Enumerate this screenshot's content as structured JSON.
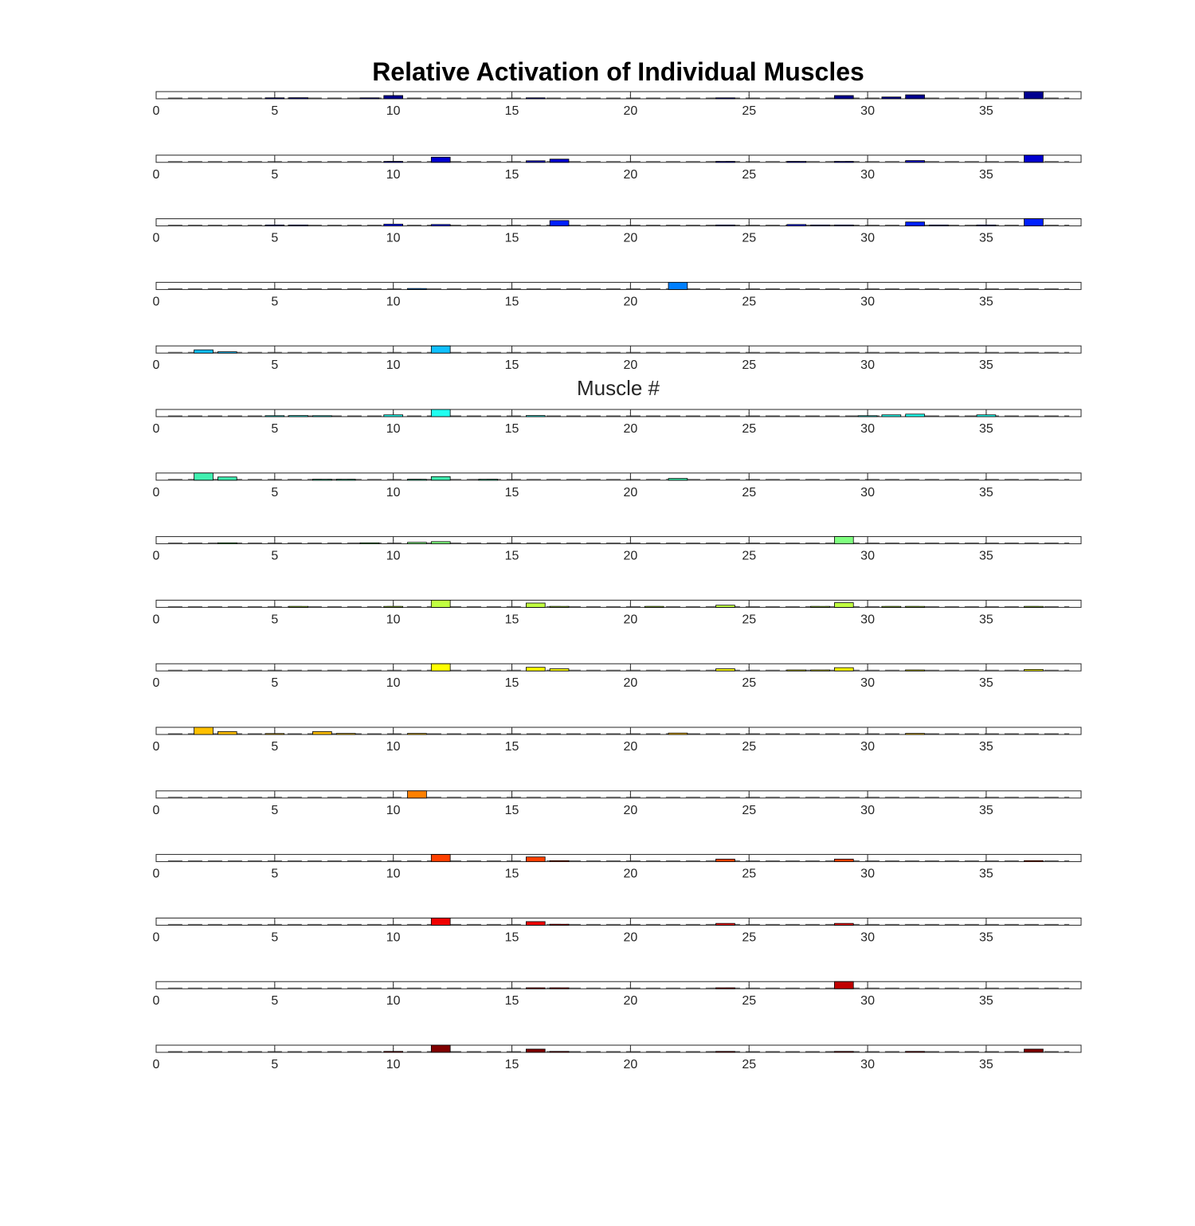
{
  "chart_data": {
    "type": "bar",
    "title": "Relative Activation of Individual Muscles",
    "xlabel": "Muscle #",
    "ylabel": "",
    "xlim": [
      0,
      39
    ],
    "ylim": [
      0,
      1
    ],
    "x_ticks": [
      0,
      5,
      10,
      15,
      20,
      25,
      30,
      35
    ],
    "x": [
      1,
      2,
      3,
      4,
      5,
      6,
      7,
      8,
      9,
      10,
      11,
      12,
      13,
      14,
      15,
      16,
      17,
      18,
      19,
      20,
      21,
      22,
      23,
      24,
      25,
      26,
      27,
      28,
      29,
      30,
      31,
      32,
      33,
      34,
      35,
      36,
      37,
      38
    ],
    "grid": false,
    "legend": "none",
    "panels": [
      {
        "color": "#00008F",
        "values": [
          0,
          0,
          0,
          0,
          0.08,
          0.15,
          0,
          0,
          0.05,
          0.45,
          0,
          0,
          0,
          0,
          0,
          0.1,
          0,
          0,
          0,
          0,
          0,
          0,
          0,
          0.05,
          0,
          0,
          0,
          0,
          0.45,
          0,
          0.25,
          0.55,
          0,
          0,
          0,
          0,
          1.0,
          0
        ]
      },
      {
        "color": "#0000D0",
        "values": [
          0,
          0,
          0,
          0,
          0,
          0,
          0,
          0,
          0,
          0.12,
          0,
          0.72,
          0,
          0,
          0,
          0.22,
          0.45,
          0,
          0,
          0,
          0,
          0,
          0,
          0.1,
          0,
          0,
          0.1,
          0,
          0.1,
          0,
          0,
          0.25,
          0,
          0,
          0,
          0,
          1.0,
          0
        ]
      },
      {
        "color": "#0020FF",
        "values": [
          0,
          0,
          0,
          0,
          0.08,
          0.08,
          0,
          0,
          0,
          0.25,
          0,
          0.2,
          0,
          0,
          0,
          0,
          0.75,
          0,
          0,
          0,
          0,
          0,
          0,
          0.08,
          0,
          0,
          0.2,
          0.08,
          0.08,
          0,
          0,
          0.55,
          0.08,
          0,
          0.08,
          0,
          1.0,
          0
        ]
      },
      {
        "color": "#0080FF",
        "values": [
          0,
          0,
          0,
          0,
          0,
          0,
          0,
          0,
          0,
          0,
          0.04,
          0,
          0,
          0,
          0,
          0,
          0,
          0,
          0,
          0,
          0,
          1.0,
          0,
          0,
          0,
          0,
          0,
          0,
          0,
          0,
          0,
          0,
          0,
          0,
          0,
          0,
          0,
          0
        ]
      },
      {
        "color": "#10C0FF",
        "values": [
          0,
          0.45,
          0.18,
          0,
          0,
          0,
          0,
          0,
          0,
          0,
          0,
          1.0,
          0,
          0,
          0,
          0,
          0,
          0,
          0,
          0,
          0,
          0,
          0,
          0,
          0,
          0,
          0,
          0,
          0,
          0,
          0,
          0,
          0,
          0,
          0,
          0,
          0,
          0
        ]
      },
      {
        "color": "#20FFF0",
        "values": [
          0,
          0,
          0,
          0,
          0.1,
          0.15,
          0.05,
          0,
          0,
          0.25,
          0,
          1.0,
          0,
          0,
          0,
          0.15,
          0,
          0,
          0,
          0,
          0,
          0,
          0,
          0,
          0,
          0,
          0,
          0,
          0,
          0.08,
          0.25,
          0.35,
          0,
          0,
          0.25,
          0,
          0,
          0
        ]
      },
      {
        "color": "#40F0B0",
        "values": [
          0,
          1.0,
          0.45,
          0,
          0,
          0,
          0.1,
          0.1,
          0,
          0,
          0.1,
          0.5,
          0,
          0.08,
          0,
          0,
          0,
          0,
          0,
          0,
          0,
          0.25,
          0,
          0,
          0,
          0,
          0,
          0,
          0,
          0,
          0,
          0,
          0,
          0,
          0,
          0,
          0,
          0
        ]
      },
      {
        "color": "#80FF80",
        "values": [
          0,
          0,
          0.04,
          0,
          0,
          0,
          0,
          0,
          0.08,
          0,
          0.2,
          0.3,
          0,
          0,
          0,
          0,
          0,
          0,
          0,
          0,
          0,
          0,
          0,
          0,
          0,
          0,
          0,
          0,
          1.0,
          0,
          0,
          0,
          0,
          0,
          0,
          0,
          0,
          0
        ]
      },
      {
        "color": "#C0FF40",
        "values": [
          0,
          0,
          0,
          0,
          0,
          0.08,
          0,
          0,
          0,
          0.08,
          0,
          1.0,
          0,
          0,
          0,
          0.6,
          0.1,
          0,
          0,
          0,
          0.05,
          0,
          0,
          0.3,
          0,
          0,
          0,
          0.08,
          0.65,
          0,
          0.05,
          0.05,
          0,
          0,
          0,
          0,
          0.08,
          0
        ]
      },
      {
        "color": "#FFFF00",
        "values": [
          0,
          0,
          0,
          0,
          0,
          0,
          0,
          0,
          0,
          0,
          0,
          1.0,
          0,
          0,
          0,
          0.5,
          0.3,
          0,
          0,
          0,
          0,
          0,
          0,
          0.3,
          0,
          0,
          0.05,
          0.05,
          0.45,
          0,
          0,
          0.1,
          0,
          0,
          0,
          0,
          0.2,
          0
        ]
      },
      {
        "color": "#FFC000",
        "values": [
          0,
          1.0,
          0.4,
          0,
          0.08,
          0,
          0.4,
          0.15,
          0,
          0,
          0.15,
          0,
          0,
          0,
          0,
          0,
          0,
          0,
          0,
          0,
          0,
          0.2,
          0,
          0,
          0,
          0,
          0,
          0,
          0,
          0,
          0,
          0.15,
          0,
          0,
          0,
          0,
          0,
          0
        ]
      },
      {
        "color": "#FF8000",
        "values": [
          0,
          0,
          0,
          0,
          0,
          0,
          0,
          0,
          0,
          0,
          1.0,
          0,
          0,
          0,
          0,
          0,
          0,
          0,
          0,
          0,
          0,
          0,
          0,
          0,
          0,
          0,
          0,
          0,
          0,
          0,
          0,
          0,
          0,
          0,
          0,
          0,
          0,
          0
        ]
      },
      {
        "color": "#FF4000",
        "values": [
          0,
          0,
          0,
          0,
          0,
          0,
          0,
          0,
          0,
          0,
          0,
          1.0,
          0,
          0,
          0,
          0.65,
          0.12,
          0,
          0,
          0,
          0,
          0,
          0,
          0.35,
          0,
          0,
          0,
          0,
          0.35,
          0,
          0,
          0,
          0,
          0,
          0,
          0,
          0.05,
          0
        ]
      },
      {
        "color": "#F00000",
        "values": [
          0,
          0,
          0,
          0,
          0,
          0,
          0,
          0,
          0,
          0,
          0,
          1.0,
          0,
          0,
          0,
          0.5,
          0.08,
          0,
          0,
          0,
          0,
          0,
          0,
          0.25,
          0,
          0,
          0,
          0,
          0.25,
          0,
          0,
          0,
          0,
          0,
          0,
          0,
          0,
          0
        ]
      },
      {
        "color": "#C00000",
        "values": [
          0,
          0,
          0,
          0,
          0,
          0,
          0,
          0,
          0,
          0,
          0,
          0,
          0,
          0,
          0,
          0.04,
          0.12,
          0,
          0,
          0,
          0,
          0,
          0,
          0.08,
          0,
          0,
          0,
          0,
          1.0,
          0,
          0,
          0,
          0,
          0,
          0,
          0,
          0,
          0
        ]
      },
      {
        "color": "#800000",
        "values": [
          0,
          0,
          0,
          0,
          0,
          0,
          0,
          0,
          0,
          0.12,
          0,
          1.0,
          0,
          0,
          0,
          0.45,
          0.08,
          0,
          0,
          0,
          0,
          0,
          0,
          0.1,
          0,
          0,
          0,
          0,
          0.1,
          0,
          0,
          0.12,
          0,
          0,
          0,
          0,
          0.45,
          0
        ]
      }
    ]
  }
}
